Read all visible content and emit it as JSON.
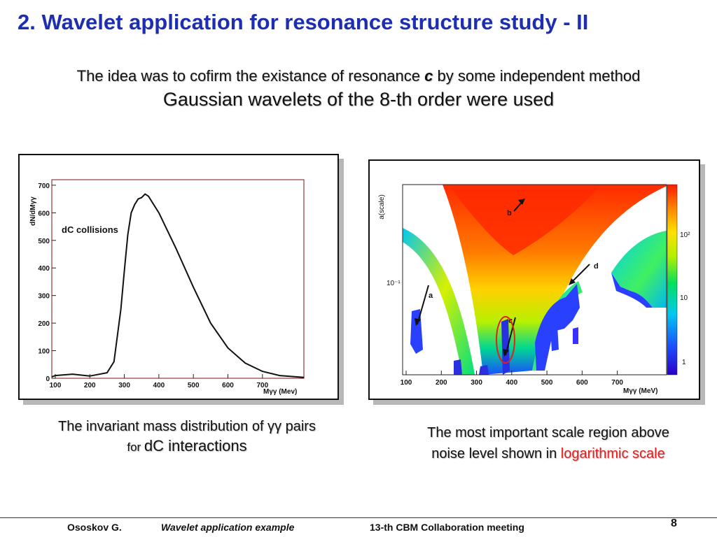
{
  "slide": {
    "title": "2. Wavelet application for resonance structure study - II",
    "subtitle_part1": "The idea was to cofirm the existance of resonance ",
    "subtitle_resonance": "c",
    "subtitle_part2": " by some independent method",
    "subtitle2": "Gaussian wavelets of the 8-th order were used"
  },
  "left_plot": {
    "annotation": "dC collisions",
    "ylabel": "dN/dMγγ",
    "xlabel": "Mγγ (Mev)",
    "y_ticks": [
      "0",
      "100",
      "200",
      "300",
      "400",
      "500",
      "600",
      "700"
    ],
    "x_ticks": [
      "100",
      "200",
      "300",
      "400",
      "500",
      "600",
      "700"
    ]
  },
  "right_plot": {
    "ylabel": "a(scale)",
    "xlabel": "Mγγ (MeV)",
    "y_tick": "10⁻¹",
    "x_ticks": [
      "100",
      "200",
      "300",
      "400",
      "500",
      "600",
      "700"
    ],
    "colorbar_ticks": [
      "10²",
      "10",
      "1"
    ],
    "arrow_labels": [
      "a",
      "b",
      "c",
      "d"
    ]
  },
  "captions": {
    "left_line1": "The invariant mass distribution of γγ pairs",
    "left_line2_small": "for ",
    "left_line2_big": "dC interactions",
    "right_line1": "The most important scale region  above",
    "right_line2_prefix": "noise level shown in ",
    "right_line2_highlight": "logarithmic scale"
  },
  "footer": {
    "author": "Ososkov G.",
    "topic": "Wavelet application example",
    "meeting": "13-th CBM Collaboration meeting",
    "page": "8"
  },
  "chart_data": [
    {
      "type": "line",
      "title": "",
      "annotation": "dC collisions",
      "xlabel": "Mγγ (Mev)",
      "ylabel": "dN/dMγγ",
      "xlim": [
        90,
        820
      ],
      "ylim": [
        0,
        720
      ],
      "grid": false,
      "x": [
        90,
        100,
        150,
        200,
        250,
        270,
        290,
        300,
        310,
        320,
        330,
        340,
        350,
        360,
        370,
        380,
        400,
        450,
        500,
        550,
        600,
        650,
        700,
        750,
        800,
        820
      ],
      "y": [
        5,
        10,
        15,
        8,
        20,
        60,
        250,
        390,
        520,
        600,
        630,
        650,
        655,
        668,
        660,
        640,
        600,
        470,
        330,
        200,
        110,
        55,
        25,
        10,
        5,
        3
      ]
    },
    {
      "type": "heatmap",
      "title": "",
      "xlabel": "Mγγ (MeV)",
      "ylabel": "a(scale)",
      "y_scale": "log",
      "xlim": [
        90,
        840
      ],
      "colorbar_ticks": [
        "1",
        "10",
        "10²"
      ],
      "arrow_labels": [
        "a",
        "b",
        "c",
        "d"
      ]
    }
  ]
}
